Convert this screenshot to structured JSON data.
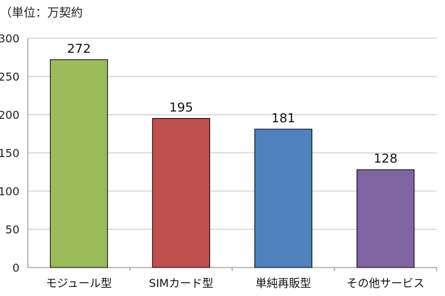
{
  "chart_data": {
    "type": "bar",
    "unit_label": "（単位：万契約",
    "categories": [
      "モジュール型",
      "SIMカード型",
      "単純再販型",
      "その他サービス"
    ],
    "values": [
      272,
      195,
      181,
      128
    ],
    "data_labels": [
      "272",
      "195",
      "181",
      "128"
    ],
    "ylim": [
      0,
      300
    ],
    "yticks": [
      0,
      50,
      100,
      150,
      200,
      250,
      300
    ],
    "ytick_labels": [
      "0",
      "50",
      "100",
      "150",
      "200",
      "250",
      "300"
    ],
    "grid": true,
    "colors": [
      "#9BBB59",
      "#C0504D",
      "#4F81BD",
      "#8064A2"
    ],
    "bar_border_color": "#000000",
    "grid_color": "#BFBFBF"
  }
}
